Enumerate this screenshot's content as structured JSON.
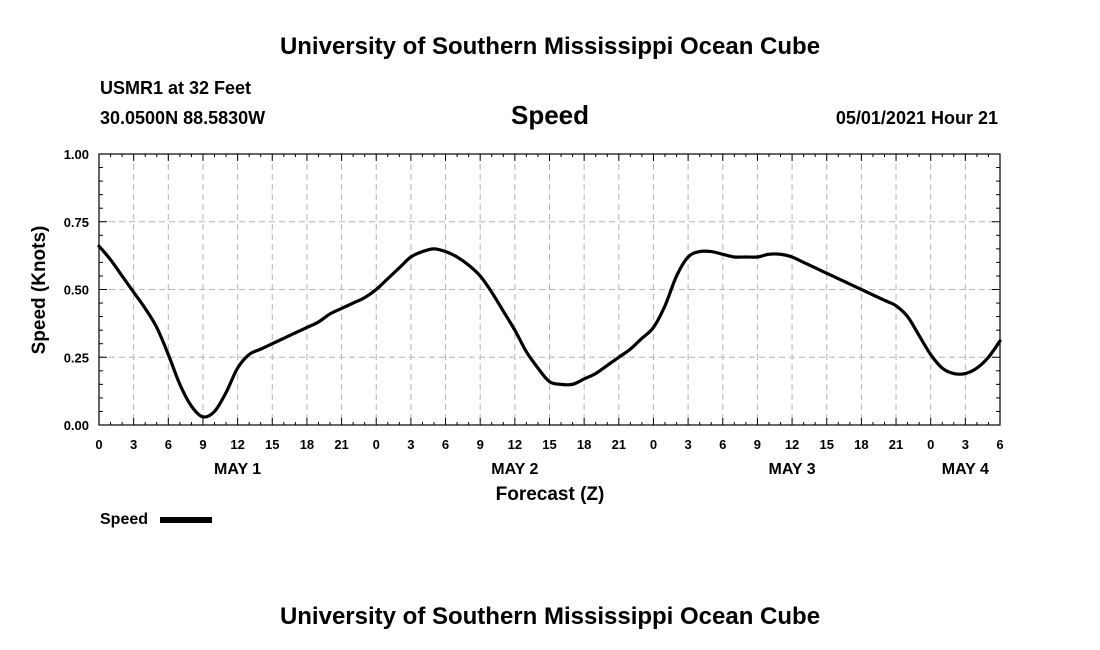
{
  "header": {
    "title_top": "University of Southern Mississippi Ocean Cube",
    "title_bottom": "University of Southern Mississippi Ocean Cube",
    "station": "USMR1 at 32 Feet",
    "location": "30.0500N  88.5830W",
    "variable": "Speed",
    "datetime": "05/01/2021 Hour 21"
  },
  "legend": {
    "label": "Speed"
  },
  "chart_data": {
    "type": "line",
    "title": "Speed",
    "xlabel": "Forecast (Z)",
    "ylabel": "Speed (Knots)",
    "x_unit": "forecast hour offset from 2021-05-01 00Z",
    "xlim": [
      0,
      78
    ],
    "ylim": [
      0,
      1
    ],
    "yticks": [
      "0.00",
      "0.25",
      "0.50",
      "0.75",
      "1.00"
    ],
    "ytick_values": [
      0,
      0.25,
      0.5,
      0.75,
      1.0
    ],
    "xtick_labels": [
      "0",
      "3",
      "6",
      "9",
      "12",
      "15",
      "18",
      "21",
      "0",
      "3",
      "6",
      "9",
      "12",
      "15",
      "18",
      "21",
      "0",
      "3",
      "6",
      "9",
      "12",
      "15",
      "18",
      "21",
      "0",
      "3",
      "6"
    ],
    "day_labels": [
      {
        "label": "MAY 1",
        "hour": 12
      },
      {
        "label": "MAY 2",
        "hour": 36
      },
      {
        "label": "MAY 3",
        "hour": 60
      },
      {
        "label": "MAY 4",
        "hour": 75
      }
    ],
    "grid": true,
    "legend_position": "bottom-left",
    "series": [
      {
        "name": "Speed",
        "color": "#000000",
        "x": [
          0,
          1,
          2,
          3,
          4,
          5,
          6,
          7,
          8,
          9,
          10,
          11,
          12,
          13,
          14,
          15,
          16,
          17,
          18,
          19,
          20,
          21,
          22,
          23,
          24,
          25,
          26,
          27,
          28,
          29,
          30,
          31,
          32,
          33,
          34,
          35,
          36,
          37,
          38,
          39,
          40,
          41,
          42,
          43,
          44,
          45,
          46,
          47,
          48,
          49,
          50,
          51,
          52,
          53,
          54,
          55,
          56,
          57,
          58,
          59,
          60,
          61,
          62,
          63,
          64,
          65,
          66,
          67,
          68,
          69,
          70,
          71,
          72,
          73,
          74,
          75,
          76,
          77,
          78
        ],
        "y": [
          0.66,
          0.61,
          0.55,
          0.49,
          0.43,
          0.36,
          0.26,
          0.15,
          0.07,
          0.03,
          0.05,
          0.12,
          0.21,
          0.26,
          0.28,
          0.3,
          0.32,
          0.34,
          0.36,
          0.38,
          0.41,
          0.43,
          0.45,
          0.47,
          0.5,
          0.54,
          0.58,
          0.62,
          0.64,
          0.65,
          0.64,
          0.62,
          0.59,
          0.55,
          0.49,
          0.42,
          0.35,
          0.27,
          0.21,
          0.16,
          0.15,
          0.15,
          0.17,
          0.19,
          0.22,
          0.25,
          0.28,
          0.32,
          0.36,
          0.44,
          0.55,
          0.62,
          0.64,
          0.64,
          0.63,
          0.62,
          0.62,
          0.62,
          0.63,
          0.63,
          0.62,
          0.6,
          0.58,
          0.56,
          0.54,
          0.52,
          0.5,
          0.48,
          0.46,
          0.44,
          0.4,
          0.33,
          0.26,
          0.21,
          0.19,
          0.19,
          0.21,
          0.25,
          0.31
        ]
      }
    ]
  }
}
